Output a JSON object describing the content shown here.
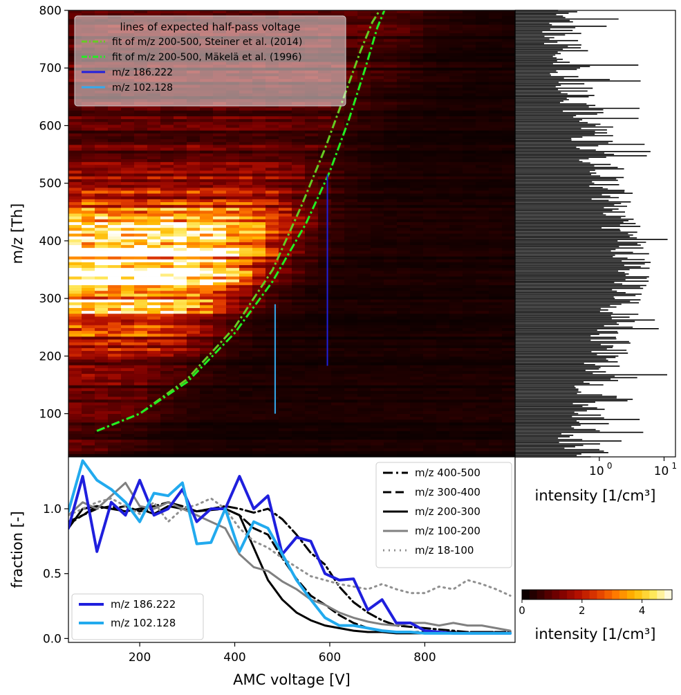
{
  "chart_data": [
    {
      "type": "heatmap",
      "panel": "top",
      "ylabel": "m/z [Th]",
      "ylim": [
        25,
        800
      ],
      "xlim": [
        50,
        990
      ],
      "yticks": [
        100,
        200,
        300,
        400,
        500,
        600,
        700,
        800
      ],
      "legend": {
        "title": "lines of expected half-pass voltage",
        "entries": [
          {
            "label": "fit of m/z 200-500, Steiner et al. (2014)",
            "color": "#66cc22",
            "style": "dashdot"
          },
          {
            "label": "fit of m/z 200-500, Mäkelä et al. (1996)",
            "color": "#22ee22",
            "style": "dashdot"
          },
          {
            "label": "m/z 186.222",
            "color": "#1f1fdd",
            "style": "solid"
          },
          {
            "label": "m/z 102.128",
            "color": "#33aaee",
            "style": "solid"
          }
        ]
      },
      "fit_steiner": {
        "x": [
          110,
          200,
          300,
          400,
          480,
          540,
          590,
          630,
          665,
          690,
          705
        ],
        "y": [
          70,
          100,
          160,
          250,
          350,
          460,
          560,
          650,
          730,
          780,
          800
        ]
      },
      "fit_makela": {
        "x": [
          110,
          200,
          300,
          400,
          480,
          550,
          600,
          640,
          675,
          700,
          715
        ],
        "y": [
          70,
          100,
          155,
          240,
          330,
          430,
          520,
          610,
          700,
          770,
          800
        ]
      },
      "vline_186": {
        "x": 595,
        "y": [
          183,
          515
        ]
      },
      "vline_102": {
        "x": 485,
        "y": [
          100,
          290
        ]
      }
    },
    {
      "type": "bar",
      "panel": "right",
      "orientation": "horizontal",
      "xlabel": "intensity [1/cm³]",
      "xscale": "log",
      "xlim": [
        0.05,
        15
      ],
      "xticks": [
        {
          "value": 1,
          "label": "10",
          "exp": "0"
        },
        {
          "value": 10,
          "label": "10",
          "exp": "1"
        }
      ],
      "profile_points": {
        "mz": [
          25,
          60,
          100,
          150,
          200,
          250,
          300,
          350,
          400,
          450,
          500,
          550,
          600,
          650,
          700,
          750,
          800
        ],
        "intensity": [
          0.6,
          0.5,
          0.8,
          0.9,
          1.2,
          1.8,
          2.6,
          3.2,
          2.8,
          1.9,
          1.3,
          0.9,
          0.7,
          0.5,
          0.35,
          0.3,
          0.25
        ]
      }
    },
    {
      "type": "line",
      "panel": "bottom",
      "xlabel": "AMC voltage [V]",
      "ylabel": "fraction [-]",
      "xlim": [
        50,
        990
      ],
      "ylim": [
        -0.03,
        1.4
      ],
      "xticks": [
        200,
        400,
        600,
        800
      ],
      "yticks": [
        0.0,
        0.5,
        1.0
      ],
      "yticklabels": [
        "0.0",
        "0.5",
        "1.0"
      ],
      "x": [
        50,
        80,
        110,
        140,
        170,
        200,
        230,
        260,
        290,
        320,
        350,
        380,
        410,
        440,
        470,
        500,
        530,
        560,
        590,
        620,
        650,
        680,
        710,
        740,
        770,
        800,
        830,
        860,
        890,
        920,
        950,
        980
      ],
      "series": [
        {
          "name": "m/z 400-500",
          "color": "#000000",
          "width": 3,
          "dash": "14 5 3 5",
          "values": [
            0.9,
            0.95,
            1.02,
            1.0,
            1.02,
            0.98,
            1.0,
            1.05,
            1.02,
            0.98,
            1.0,
            1.02,
            1.0,
            0.97,
            1.0,
            0.92,
            0.8,
            0.66,
            0.57,
            0.4,
            0.28,
            0.2,
            0.14,
            0.1,
            0.09,
            0.08,
            0.07,
            0.06,
            0.05,
            0.05,
            0.05,
            0.05
          ]
        },
        {
          "name": "m/z 300-400",
          "color": "#000000",
          "width": 3,
          "dash": "12 6",
          "values": [
            0.88,
            0.95,
            1.0,
            1.02,
            0.98,
            1.0,
            1.02,
            1.05,
            1.0,
            0.98,
            0.99,
            1.0,
            0.95,
            0.85,
            0.8,
            0.62,
            0.46,
            0.33,
            0.26,
            0.18,
            0.12,
            0.08,
            0.06,
            0.05,
            0.05,
            0.05,
            0.05,
            0.05,
            0.05,
            0.05,
            0.05,
            0.05
          ]
        },
        {
          "name": "m/z 200-300",
          "color": "#000000",
          "width": 3,
          "dash": "",
          "values": [
            0.85,
            1.0,
            1.02,
            1.0,
            0.98,
            1.0,
            0.96,
            1.02,
            1.0,
            0.98,
            1.0,
            1.0,
            0.95,
            0.7,
            0.45,
            0.3,
            0.2,
            0.14,
            0.1,
            0.08,
            0.06,
            0.05,
            0.05,
            0.04,
            0.04,
            0.04,
            0.04,
            0.04,
            0.04,
            0.04,
            0.04,
            0.04
          ]
        },
        {
          "name": "m/z 100-200",
          "color": "#808080",
          "width": 3,
          "dash": "",
          "values": [
            0.95,
            1.05,
            1.0,
            1.1,
            1.2,
            1.02,
            1.0,
            1.05,
            1.0,
            0.95,
            0.9,
            0.85,
            0.65,
            0.55,
            0.52,
            0.44,
            0.38,
            0.3,
            0.26,
            0.2,
            0.16,
            0.13,
            0.11,
            0.1,
            0.12,
            0.12,
            0.1,
            0.12,
            0.1,
            0.1,
            0.08,
            0.06
          ]
        },
        {
          "name": "m/z 18-100",
          "color": "#909090",
          "width": 3,
          "dash": "2 6",
          "values": [
            0.95,
            1.0,
            1.05,
            1.08,
            1.02,
            0.96,
            1.05,
            0.9,
            1.0,
            1.03,
            1.08,
            1.0,
            0.85,
            0.75,
            0.7,
            0.62,
            0.55,
            0.48,
            0.45,
            0.42,
            0.4,
            0.38,
            0.42,
            0.38,
            0.35,
            0.35,
            0.4,
            0.38,
            0.45,
            0.42,
            0.38,
            0.33
          ]
        },
        {
          "name": "m/z 186.222",
          "color": "#1f1fdd",
          "width": 4,
          "dash": "",
          "values": [
            0.85,
            1.25,
            0.67,
            1.05,
            0.95,
            1.22,
            0.95,
            1.0,
            1.15,
            0.9,
            1.0,
            1.0,
            1.25,
            1.0,
            1.1,
            0.65,
            0.78,
            0.75,
            0.5,
            0.45,
            0.46,
            0.22,
            0.3,
            0.12,
            0.12,
            0.06,
            0.05,
            0.04,
            0.04,
            0.04,
            0.04,
            0.04
          ]
        },
        {
          "name": "m/z 102.128",
          "color": "#22aaee",
          "width": 4,
          "dash": "",
          "values": [
            0.98,
            1.37,
            1.22,
            1.15,
            1.05,
            0.9,
            1.12,
            1.1,
            1.2,
            0.73,
            0.74,
            1.0,
            0.67,
            0.9,
            0.85,
            0.65,
            0.45,
            0.3,
            0.16,
            0.1,
            0.1,
            0.08,
            0.06,
            0.05,
            0.05,
            0.04,
            0.04,
            0.04,
            0.04,
            0.04,
            0.04,
            0.04
          ]
        }
      ],
      "legend_right": [
        "m/z 400-500",
        "m/z 300-400",
        "m/z 200-300",
        "m/z 100-200",
        "m/z 18-100"
      ],
      "legend_left": [
        "m/z 186.222",
        "m/z 102.128"
      ]
    },
    {
      "type": "colorbar",
      "xlabel": "intensity [1/cm³]",
      "range": [
        0,
        5
      ],
      "ticks": [
        0,
        2,
        4
      ],
      "colors": [
        "#000000",
        "#3a0000",
        "#7a0000",
        "#b31000",
        "#e03a00",
        "#ff7a00",
        "#ffb800",
        "#ffe85a",
        "#ffffff"
      ]
    }
  ]
}
